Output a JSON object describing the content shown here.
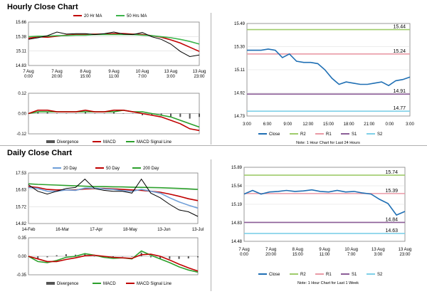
{
  "colors": {
    "candle": "#000000",
    "ma20": "#c00000",
    "ma50": "#3cb44b",
    "ma200": "#2ca02c",
    "day20": "#6f9fd8",
    "macd": "#c00000",
    "signal": "#2ca02c",
    "close": "#1f6fb4",
    "r2": "#9fcc6b",
    "r1": "#e99aa6",
    "s1": "#8c5e98",
    "s2": "#7fd0e8",
    "divergence": "#555555"
  },
  "sections": {
    "hourly": "Hourly Close Chart",
    "daily": "Daily Close Chart"
  },
  "chart_data": [
    {
      "id": "hourly_price",
      "type": "line",
      "title": "Hourly Close Chart",
      "x_ticks": [
        "7 Aug\n0:00",
        "7 Aug\n20:00",
        "8 Aug\n15:00",
        "9 Aug\n11:00",
        "10 Aug\n7:00",
        "13 Aug\n3:00",
        "13 Aug\n23:00"
      ],
      "y_ticks": [
        "15.66",
        "15.38",
        "15.11",
        "14.83"
      ],
      "ylim": [
        14.83,
        15.66
      ],
      "series": [
        {
          "name": "20 Hr MA",
          "color_key": "ma20",
          "values": [
            15.35,
            15.38,
            15.37,
            15.39,
            15.41,
            15.42,
            15.42,
            15.43,
            15.43,
            15.44,
            15.44,
            15.43,
            15.42,
            15.4,
            15.37,
            15.32,
            15.26,
            15.18,
            15.1
          ]
        },
        {
          "name": "50 Hrs MA",
          "color_key": "ma50",
          "values": [
            15.38,
            15.39,
            15.39,
            15.4,
            15.4,
            15.41,
            15.41,
            15.42,
            15.42,
            15.42,
            15.42,
            15.42,
            15.41,
            15.4,
            15.38,
            15.36,
            15.33,
            15.29,
            15.24
          ]
        },
        {
          "name": "Close",
          "color_key": "candle",
          "values": [
            15.33,
            15.36,
            15.4,
            15.47,
            15.43,
            15.44,
            15.44,
            15.42,
            15.44,
            15.47,
            15.43,
            15.42,
            15.46,
            15.38,
            15.33,
            15.24,
            15.1,
            15.0,
            15.03
          ]
        }
      ],
      "legend": [
        "20 Hr MA",
        "50 Hrs MA"
      ]
    },
    {
      "id": "hourly_macd",
      "type": "line",
      "y_ticks": [
        "0.12",
        "0.00",
        "-0.12"
      ],
      "ylim": [
        -0.12,
        0.12
      ],
      "series": [
        {
          "name": "MACD",
          "color_key": "macd",
          "values": [
            0.0,
            0.02,
            0.02,
            0.01,
            0.01,
            0.01,
            0.02,
            0.01,
            0.01,
            0.02,
            0.02,
            0.01,
            0.0,
            -0.01,
            -0.02,
            -0.04,
            -0.06,
            -0.09,
            -0.1
          ]
        },
        {
          "name": "MACD Signal Line",
          "color_key": "signal",
          "values": [
            0.0,
            0.01,
            0.01,
            0.01,
            0.01,
            0.01,
            0.01,
            0.01,
            0.01,
            0.01,
            0.02,
            0.01,
            0.01,
            0.0,
            -0.01,
            -0.02,
            -0.04,
            -0.06,
            -0.08
          ]
        }
      ],
      "legend": [
        "Divergence",
        "MACD",
        "MACD Signal Line"
      ]
    },
    {
      "id": "hourly_levels",
      "type": "line",
      "note": "Note: 1 Hour Chart for Last 24 Hours",
      "x_ticks": [
        "3:00",
        "6:00",
        "9:00",
        "12:00",
        "15:00",
        "18:00",
        "21:00",
        "0:00",
        "3:00"
      ],
      "y_ticks": [
        "15.49",
        "15.30",
        "15.11",
        "14.92",
        "14.73"
      ],
      "ylim": [
        14.73,
        15.49
      ],
      "series": [
        {
          "name": "Close",
          "color_key": "close",
          "values": [
            15.27,
            15.27,
            15.27,
            15.28,
            15.27,
            15.21,
            15.24,
            15.18,
            15.17,
            15.17,
            15.16,
            15.11,
            15.04,
            14.99,
            15.01,
            15.0,
            14.99,
            14.99,
            15.0,
            15.01,
            14.98,
            15.02,
            15.03,
            15.05
          ]
        }
      ],
      "levels": [
        {
          "name": "R2",
          "value": 15.44,
          "label": "15.44",
          "color_key": "r2"
        },
        {
          "name": "R1",
          "value": 15.24,
          "label": "15.24",
          "color_key": "r1"
        },
        {
          "name": "S1",
          "value": 14.91,
          "label": "14.91",
          "color_key": "s1"
        },
        {
          "name": "S2",
          "value": 14.77,
          "label": "14.77",
          "color_key": "s2"
        }
      ],
      "legend": [
        "Close",
        "R2",
        "R1",
        "S1",
        "S2"
      ]
    },
    {
      "id": "daily_price",
      "type": "line",
      "title": "Daily Close Chart",
      "x_ticks": [
        "14-Feb",
        "16-Mar",
        "17-Apr",
        "18-May",
        "13-Jun",
        "13-Jul"
      ],
      "y_ticks": [
        "17.53",
        "16.63",
        "15.72",
        "14.82"
      ],
      "ylim": [
        14.82,
        17.53
      ],
      "series": [
        {
          "name": "20 Day",
          "color_key": "day20",
          "values": [
            16.75,
            16.7,
            16.55,
            16.55,
            16.62,
            16.6,
            16.72,
            16.72,
            16.68,
            16.65,
            16.58,
            16.55,
            16.65,
            16.55,
            16.45,
            16.2,
            15.98,
            15.8,
            15.65
          ]
        },
        {
          "name": "50 Day",
          "color_key": "macd",
          "values": [
            16.8,
            16.75,
            16.65,
            16.62,
            16.62,
            16.62,
            16.68,
            16.7,
            16.7,
            16.68,
            16.65,
            16.62,
            16.6,
            16.55,
            16.5,
            16.4,
            16.28,
            16.15,
            16.05
          ]
        },
        {
          "name": "200 Day",
          "color_key": "ma200",
          "values": [
            16.95,
            16.92,
            16.9,
            16.88,
            16.86,
            16.84,
            16.82,
            16.8,
            16.8,
            16.79,
            16.78,
            16.77,
            16.76,
            16.75,
            16.74,
            16.72,
            16.7,
            16.68,
            16.65
          ]
        },
        {
          "name": "Close",
          "color_key": "candle",
          "values": [
            16.9,
            16.55,
            16.4,
            16.55,
            16.7,
            16.75,
            17.2,
            16.7,
            16.6,
            16.55,
            16.55,
            16.45,
            17.2,
            16.45,
            16.2,
            15.85,
            15.55,
            15.45,
            15.2
          ]
        }
      ],
      "legend": [
        "20 Day",
        "50 Day",
        "200 Day"
      ]
    },
    {
      "id": "daily_macd",
      "type": "line",
      "y_ticks": [
        "0.35",
        "0.00",
        "-0.35"
      ],
      "ylim": [
        -0.35,
        0.35
      ],
      "series": [
        {
          "name": "MACD",
          "color_key": "signal",
          "values": [
            0.0,
            -0.1,
            -0.12,
            -0.08,
            -0.02,
            0.0,
            0.05,
            0.02,
            -0.02,
            -0.04,
            -0.03,
            -0.05,
            0.1,
            0.02,
            -0.05,
            -0.12,
            -0.2,
            -0.26,
            -0.3
          ]
        },
        {
          "name": "MACD Signal Line",
          "color_key": "macd",
          "values": [
            0.0,
            -0.05,
            -0.1,
            -0.1,
            -0.06,
            -0.03,
            0.01,
            0.02,
            0.0,
            -0.02,
            -0.03,
            -0.04,
            0.03,
            0.04,
            0.0,
            -0.07,
            -0.15,
            -0.22,
            -0.28
          ]
        }
      ],
      "legend": [
        "Divergence",
        "MACD",
        "MACD Signal Line"
      ]
    },
    {
      "id": "daily_levels",
      "type": "line",
      "note": "Note: 1 Hour Chart for Last 1 Week",
      "x_ticks": [
        "7 Aug\n0:00",
        "7 Aug\n20:00",
        "8 Aug\n15:00",
        "9 Aug\n11:00",
        "10 Aug\n7:00",
        "13 Aug\n3:00",
        "13 Aug\n23:00"
      ],
      "y_ticks": [
        "15.89",
        "15.54",
        "15.19",
        "14.83",
        "14.48"
      ],
      "ylim": [
        14.48,
        15.89
      ],
      "series": [
        {
          "name": "Close",
          "color_key": "close",
          "values": [
            15.38,
            15.45,
            15.38,
            15.42,
            15.43,
            15.45,
            15.43,
            15.44,
            15.46,
            15.43,
            15.42,
            15.45,
            15.42,
            15.43,
            15.4,
            15.38,
            15.28,
            15.2,
            14.98,
            15.05
          ]
        }
      ],
      "levels": [
        {
          "name": "R2",
          "value": 15.74,
          "label": "15.74",
          "color_key": "r2"
        },
        {
          "name": "R1",
          "value": 15.39,
          "label": "15.39",
          "color_key": "r1"
        },
        {
          "name": "S1",
          "value": 14.84,
          "label": "14.84",
          "color_key": "s1"
        },
        {
          "name": "S2",
          "value": 14.63,
          "label": "14.63",
          "color_key": "s2"
        }
      ],
      "legend": [
        "Close",
        "R2",
        "R1",
        "S1",
        "S2"
      ]
    }
  ]
}
